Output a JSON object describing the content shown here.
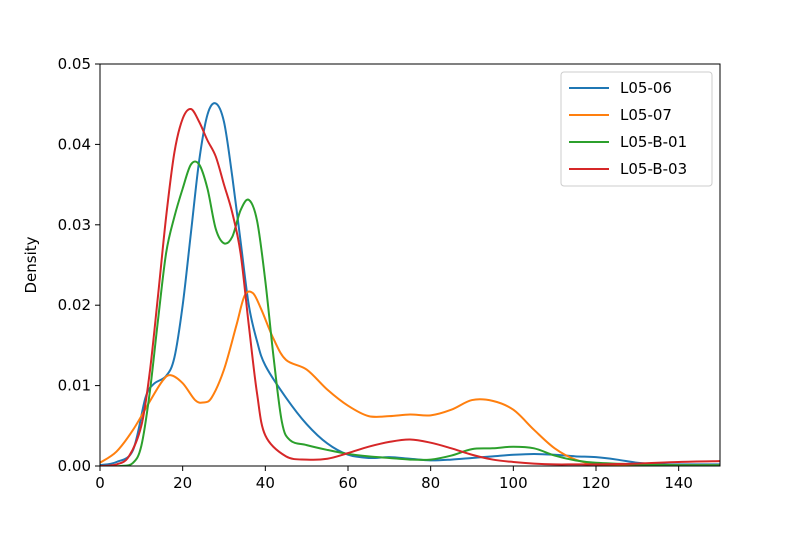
{
  "chart_data": {
    "type": "line",
    "title": "",
    "xlabel": "",
    "ylabel": "Density",
    "xlim": [
      0,
      150
    ],
    "ylim": [
      0,
      0.05
    ],
    "x_ticks": [
      0,
      20,
      40,
      60,
      80,
      100,
      120,
      140
    ],
    "y_ticks": [
      0.0,
      0.01,
      0.02,
      0.03,
      0.04,
      0.05
    ],
    "y_tick_labels": [
      "0.00",
      "0.01",
      "0.02",
      "0.03",
      "0.04",
      "0.05"
    ],
    "grid": false,
    "legend_position": "top-right",
    "series": [
      {
        "name": "L05-06",
        "color": "#1f77b4",
        "points": [
          [
            0,
            0.0001
          ],
          [
            4,
            0.0005
          ],
          [
            8,
            0.002
          ],
          [
            11,
            0.0085
          ],
          [
            13,
            0.0102
          ],
          [
            16,
            0.0112
          ],
          [
            18,
            0.0135
          ],
          [
            20,
            0.02
          ],
          [
            22,
            0.029
          ],
          [
            24,
            0.038
          ],
          [
            26,
            0.0437
          ],
          [
            28,
            0.0451
          ],
          [
            30,
            0.0428
          ],
          [
            32,
            0.036
          ],
          [
            34,
            0.028
          ],
          [
            36,
            0.02
          ],
          [
            38,
            0.0155
          ],
          [
            40,
            0.0125
          ],
          [
            45,
            0.0085
          ],
          [
            50,
            0.0052
          ],
          [
            55,
            0.0028
          ],
          [
            60,
            0.0014
          ],
          [
            65,
            0.001
          ],
          [
            70,
            0.0011
          ],
          [
            75,
            0.0009
          ],
          [
            80,
            0.0007
          ],
          [
            85,
            0.0008
          ],
          [
            90,
            0.001
          ],
          [
            95,
            0.0012
          ],
          [
            100,
            0.0014
          ],
          [
            105,
            0.0015
          ],
          [
            110,
            0.0014
          ],
          [
            115,
            0.0012
          ],
          [
            120,
            0.0011
          ],
          [
            125,
            0.0008
          ],
          [
            130,
            0.0004
          ],
          [
            135,
            0.0002
          ],
          [
            140,
            0.0002
          ],
          [
            145,
            0.0002
          ],
          [
            150,
            0.0002
          ]
        ]
      },
      {
        "name": "L05-07",
        "color": "#ff7f0e",
        "points": [
          [
            0,
            0.0004
          ],
          [
            4,
            0.0018
          ],
          [
            8,
            0.0045
          ],
          [
            12,
            0.008
          ],
          [
            15,
            0.0105
          ],
          [
            17,
            0.0113
          ],
          [
            20,
            0.0103
          ],
          [
            23,
            0.0082
          ],
          [
            25,
            0.0079
          ],
          [
            27,
            0.0085
          ],
          [
            30,
            0.012
          ],
          [
            33,
            0.0175
          ],
          [
            35,
            0.0212
          ],
          [
            37,
            0.0215
          ],
          [
            39,
            0.0195
          ],
          [
            42,
            0.0158
          ],
          [
            45,
            0.0132
          ],
          [
            50,
            0.012
          ],
          [
            55,
            0.0095
          ],
          [
            60,
            0.0075
          ],
          [
            65,
            0.0062
          ],
          [
            70,
            0.0062
          ],
          [
            75,
            0.0064
          ],
          [
            80,
            0.0063
          ],
          [
            85,
            0.007
          ],
          [
            90,
            0.0082
          ],
          [
            95,
            0.0081
          ],
          [
            100,
            0.007
          ],
          [
            105,
            0.0045
          ],
          [
            110,
            0.0022
          ],
          [
            115,
            0.0008
          ],
          [
            120,
            0.0002
          ],
          [
            125,
            0.0001
          ],
          [
            130,
            0.0001
          ],
          [
            140,
            0.0001
          ],
          [
            150,
            0.0001
          ]
        ]
      },
      {
        "name": "L05-B-01",
        "color": "#2ca02c",
        "points": [
          [
            0,
            0.0
          ],
          [
            5,
            0.0
          ],
          [
            8,
            0.0004
          ],
          [
            10,
            0.0025
          ],
          [
            12,
            0.009
          ],
          [
            14,
            0.018
          ],
          [
            16,
            0.0265
          ],
          [
            18,
            0.031
          ],
          [
            20,
            0.0345
          ],
          [
            22,
            0.0375
          ],
          [
            24,
            0.0375
          ],
          [
            26,
            0.0345
          ],
          [
            28,
            0.0295
          ],
          [
            30,
            0.0277
          ],
          [
            32,
            0.0285
          ],
          [
            34,
            0.0318
          ],
          [
            36,
            0.0331
          ],
          [
            38,
            0.0305
          ],
          [
            40,
            0.023
          ],
          [
            42,
            0.0135
          ],
          [
            44,
            0.0055
          ],
          [
            46,
            0.0032
          ],
          [
            50,
            0.0026
          ],
          [
            55,
            0.002
          ],
          [
            60,
            0.0015
          ],
          [
            65,
            0.0012
          ],
          [
            70,
            0.001
          ],
          [
            75,
            0.0008
          ],
          [
            80,
            0.0008
          ],
          [
            85,
            0.0013
          ],
          [
            90,
            0.0021
          ],
          [
            95,
            0.0022
          ],
          [
            100,
            0.0024
          ],
          [
            105,
            0.0022
          ],
          [
            110,
            0.0013
          ],
          [
            115,
            0.0007
          ],
          [
            120,
            0.0004
          ],
          [
            130,
            0.0002
          ],
          [
            140,
            0.0001
          ],
          [
            150,
            0.0001
          ]
        ]
      },
      {
        "name": "L05-B-03",
        "color": "#d62728",
        "points": [
          [
            0,
            0.0
          ],
          [
            4,
            0.0002
          ],
          [
            7,
            0.0012
          ],
          [
            10,
            0.005
          ],
          [
            12,
            0.0115
          ],
          [
            14,
            0.021
          ],
          [
            16,
            0.031
          ],
          [
            18,
            0.039
          ],
          [
            20,
            0.0432
          ],
          [
            22,
            0.0444
          ],
          [
            24,
            0.0428
          ],
          [
            26,
            0.0405
          ],
          [
            28,
            0.0385
          ],
          [
            30,
            0.035
          ],
          [
            32,
            0.0315
          ],
          [
            34,
            0.0265
          ],
          [
            36,
            0.0175
          ],
          [
            38,
            0.009
          ],
          [
            40,
            0.0038
          ],
          [
            45,
            0.0012
          ],
          [
            50,
            0.0008
          ],
          [
            55,
            0.0009
          ],
          [
            60,
            0.0016
          ],
          [
            65,
            0.0024
          ],
          [
            70,
            0.003
          ],
          [
            75,
            0.0033
          ],
          [
            80,
            0.0029
          ],
          [
            85,
            0.0022
          ],
          [
            90,
            0.0014
          ],
          [
            95,
            0.0008
          ],
          [
            100,
            0.0005
          ],
          [
            105,
            0.0003
          ],
          [
            110,
            0.0002
          ],
          [
            115,
            0.0002
          ],
          [
            120,
            0.0002
          ],
          [
            130,
            0.0003
          ],
          [
            140,
            0.0005
          ],
          [
            150,
            0.0006
          ]
        ]
      }
    ]
  }
}
